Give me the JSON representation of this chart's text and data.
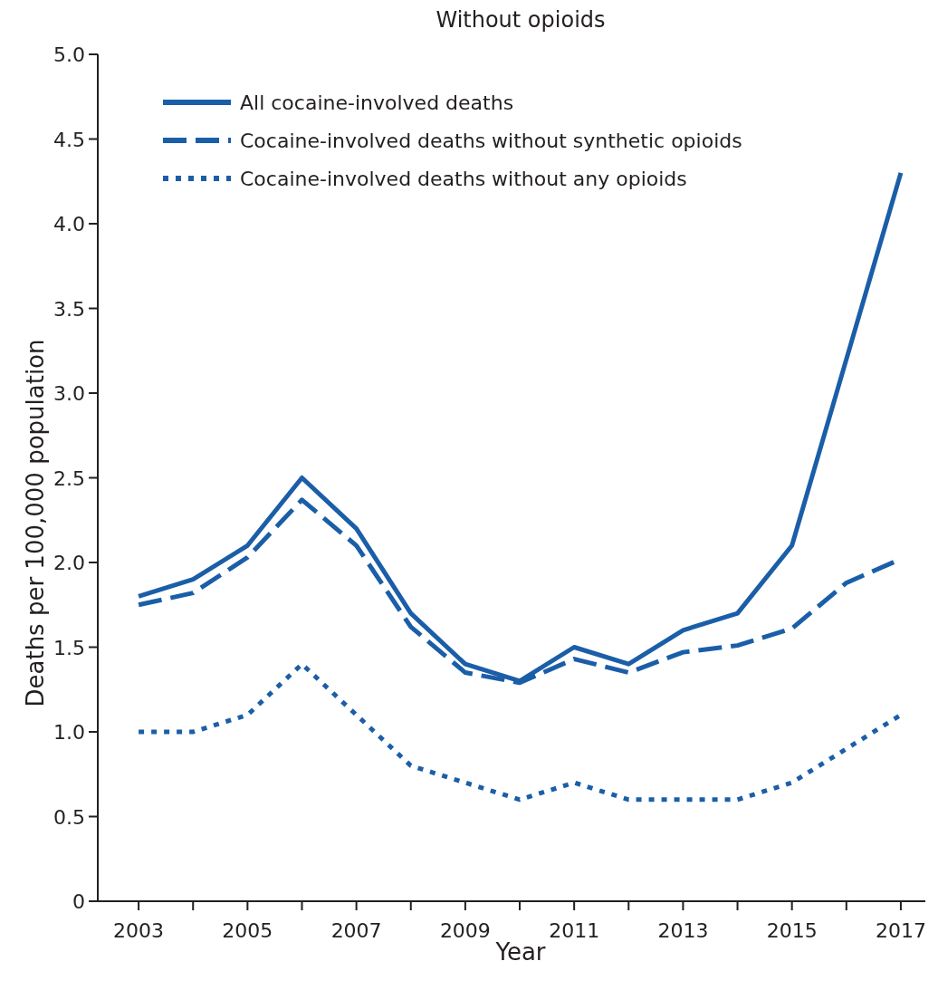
{
  "chart_data": {
    "type": "line",
    "title": "Without opioids",
    "xlabel": "Year",
    "ylabel": "Deaths per 100,000 population",
    "x": [
      2003,
      2004,
      2005,
      2006,
      2007,
      2008,
      2009,
      2010,
      2011,
      2012,
      2013,
      2014,
      2015,
      2016,
      2017
    ],
    "xlim": [
      2002.25,
      2017.45
    ],
    "xticks": [
      2003,
      {
        "value": 2004,
        "label": null
      },
      2005,
      {
        "value": 2006,
        "label": null
      },
      2007,
      {
        "value": 2008,
        "label": null
      },
      2009,
      {
        "value": 2010,
        "label": null
      },
      2011,
      {
        "value": 2012,
        "label": null
      },
      2013,
      {
        "value": 2014,
        "label": null
      },
      2015,
      {
        "value": 2016,
        "label": null
      },
      2017
    ],
    "ylim": [
      0,
      5
    ],
    "yticks": [
      0,
      0.5,
      {
        "value": 1,
        "label": "1.0"
      },
      1.5,
      {
        "value": 2,
        "label": "2.0"
      },
      2.5,
      {
        "value": 3,
        "label": "3.0"
      },
      3.5,
      {
        "value": 4,
        "label": "4.0"
      },
      4.5,
      {
        "value": 5,
        "label": "5.0"
      }
    ],
    "grid": false,
    "legend": "top left",
    "marker": "none",
    "series": [
      {
        "name": "All cocaine-involved deaths",
        "color": "#1b5ea8",
        "line_style": "solid",
        "values": [
          1.8,
          1.9,
          2.1,
          2.5,
          2.2,
          1.7,
          1.4,
          1.3,
          1.5,
          1.4,
          1.6,
          1.7,
          2.1,
          3.2,
          4.3
        ]
      },
      {
        "name": "Cocaine-involved deaths without synthetic opioids",
        "color": "#1b5ea8",
        "line_style": "dashed",
        "values": [
          1.75,
          1.82,
          2.03,
          2.37,
          2.1,
          1.62,
          1.35,
          1.29,
          1.43,
          1.35,
          1.47,
          1.51,
          1.61,
          1.88,
          2.02
        ]
      },
      {
        "name": "Cocaine-involved deaths without any opioids",
        "color": "#1b5ea8",
        "line_style": "dotted",
        "values": [
          1.0,
          1.0,
          1.1,
          1.4,
          1.1,
          0.8,
          0.7,
          0.6,
          0.7,
          0.6,
          0.6,
          0.6,
          0.7,
          0.9,
          1.1
        ]
      }
    ]
  }
}
